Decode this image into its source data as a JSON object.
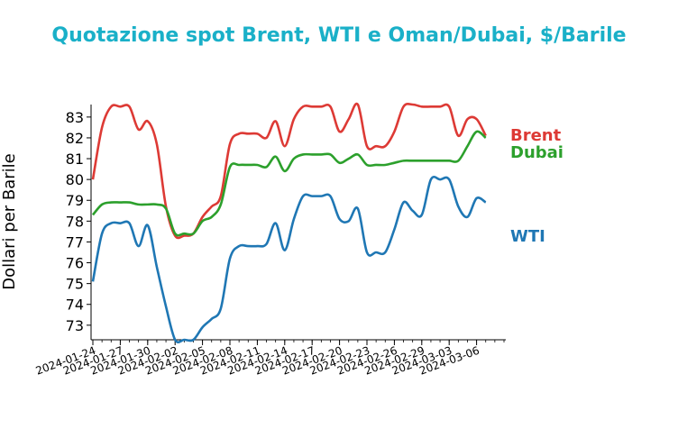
{
  "chart_data": {
    "type": "line",
    "title": "Quotazione spot Brent, WTI e Oman/Dubai, $/Barile",
    "title_color": "#1ab0c8",
    "ylabel": "Dollari per Barile",
    "xlabel": "",
    "ylim": [
      72.3,
      83.6
    ],
    "yticks": [
      73,
      74,
      75,
      76,
      77,
      78,
      79,
      80,
      81,
      82,
      83
    ],
    "xlim": [
      "2024-01-24",
      "2024-03-09"
    ],
    "xticks": [
      "2024-01-24",
      "2024-01-27",
      "2024-01-30",
      "2024-02-02",
      "2024-02-05",
      "2024-02-08",
      "2024-02-11",
      "2024-02-14",
      "2024-02-17",
      "2024-02-20",
      "2024-02-23",
      "2024-02-26",
      "2024-02-29",
      "2024-03-03",
      "2024-03-06"
    ],
    "grid": false,
    "legend": "line-end labels on the right",
    "series": [
      {
        "name": "Brent",
        "color": "#dd3a35",
        "x": [
          "2024-01-24",
          "2024-01-25",
          "2024-01-26",
          "2024-01-27",
          "2024-01-28",
          "2024-01-29",
          "2024-01-30",
          "2024-01-31",
          "2024-02-01",
          "2024-02-02",
          "2024-02-03",
          "2024-02-04",
          "2024-02-05",
          "2024-02-06",
          "2024-02-07",
          "2024-02-08",
          "2024-02-09",
          "2024-02-10",
          "2024-02-11",
          "2024-02-12",
          "2024-02-13",
          "2024-02-14",
          "2024-02-15",
          "2024-02-16",
          "2024-02-17",
          "2024-02-18",
          "2024-02-19",
          "2024-02-20",
          "2024-02-21",
          "2024-02-22",
          "2024-02-23",
          "2024-02-24",
          "2024-02-25",
          "2024-02-26",
          "2024-02-27",
          "2024-02-28",
          "2024-02-29",
          "2024-03-01",
          "2024-03-02",
          "2024-03-03",
          "2024-03-04",
          "2024-03-05",
          "2024-03-06",
          "2024-03-07"
        ],
        "values": [
          80.0,
          82.5,
          83.5,
          83.5,
          83.5,
          82.4,
          82.8,
          81.7,
          78.7,
          77.3,
          77.3,
          77.4,
          78.2,
          78.7,
          79.2,
          81.7,
          82.2,
          82.2,
          82.2,
          82.0,
          82.8,
          81.6,
          82.9,
          83.5,
          83.5,
          83.5,
          83.5,
          82.3,
          82.9,
          83.6,
          81.6,
          81.6,
          81.6,
          82.3,
          83.5,
          83.6,
          83.5,
          83.5,
          83.5,
          83.5,
          82.1,
          82.9,
          82.9,
          82.1
        ]
      },
      {
        "name": "Dubai",
        "color": "#2ca02c",
        "x": [
          "2024-01-24",
          "2024-01-25",
          "2024-01-26",
          "2024-01-27",
          "2024-01-28",
          "2024-01-29",
          "2024-01-30",
          "2024-01-31",
          "2024-02-01",
          "2024-02-02",
          "2024-02-03",
          "2024-02-04",
          "2024-02-05",
          "2024-02-06",
          "2024-02-07",
          "2024-02-08",
          "2024-02-09",
          "2024-02-10",
          "2024-02-11",
          "2024-02-12",
          "2024-02-13",
          "2024-02-14",
          "2024-02-15",
          "2024-02-16",
          "2024-02-17",
          "2024-02-18",
          "2024-02-19",
          "2024-02-20",
          "2024-02-21",
          "2024-02-22",
          "2024-02-23",
          "2024-02-24",
          "2024-02-25",
          "2024-02-26",
          "2024-02-27",
          "2024-02-28",
          "2024-02-29",
          "2024-03-01",
          "2024-03-02",
          "2024-03-03",
          "2024-03-04",
          "2024-03-05",
          "2024-03-06",
          "2024-03-07"
        ],
        "values": [
          78.3,
          78.8,
          78.9,
          78.9,
          78.9,
          78.8,
          78.8,
          78.8,
          78.6,
          77.4,
          77.4,
          77.4,
          78.0,
          78.2,
          78.8,
          80.6,
          80.7,
          80.7,
          80.7,
          80.6,
          81.1,
          80.4,
          81.0,
          81.2,
          81.2,
          81.2,
          81.2,
          80.8,
          81.0,
          81.2,
          80.7,
          80.7,
          80.7,
          80.8,
          80.9,
          80.9,
          80.9,
          80.9,
          80.9,
          80.9,
          80.9,
          81.6,
          82.3,
          82.0
        ]
      },
      {
        "name": "WTI",
        "color": "#1f77b4",
        "x": [
          "2024-01-24",
          "2024-01-25",
          "2024-01-26",
          "2024-01-27",
          "2024-01-28",
          "2024-01-29",
          "2024-01-30",
          "2024-01-31",
          "2024-02-01",
          "2024-02-02",
          "2024-02-03",
          "2024-02-04",
          "2024-02-05",
          "2024-02-06",
          "2024-02-07",
          "2024-02-08",
          "2024-02-09",
          "2024-02-10",
          "2024-02-11",
          "2024-02-12",
          "2024-02-13",
          "2024-02-14",
          "2024-02-15",
          "2024-02-16",
          "2024-02-17",
          "2024-02-18",
          "2024-02-19",
          "2024-02-20",
          "2024-02-21",
          "2024-02-22",
          "2024-02-23",
          "2024-02-24",
          "2024-02-25",
          "2024-02-26",
          "2024-02-27",
          "2024-02-28",
          "2024-02-29",
          "2024-03-01",
          "2024-03-02",
          "2024-03-03",
          "2024-03-04",
          "2024-03-05",
          "2024-03-06",
          "2024-03-07"
        ],
        "values": [
          75.1,
          77.4,
          77.9,
          77.9,
          77.9,
          76.8,
          77.8,
          75.8,
          73.9,
          72.3,
          72.3,
          72.3,
          72.9,
          73.3,
          73.8,
          76.2,
          76.8,
          76.8,
          76.8,
          76.9,
          77.9,
          76.6,
          78.1,
          79.2,
          79.2,
          79.2,
          79.2,
          78.1,
          78.0,
          78.6,
          76.5,
          76.5,
          76.5,
          77.6,
          78.9,
          78.5,
          78.3,
          80.0,
          80.0,
          80.0,
          78.7,
          78.2,
          79.1,
          78.9
        ]
      }
    ]
  }
}
